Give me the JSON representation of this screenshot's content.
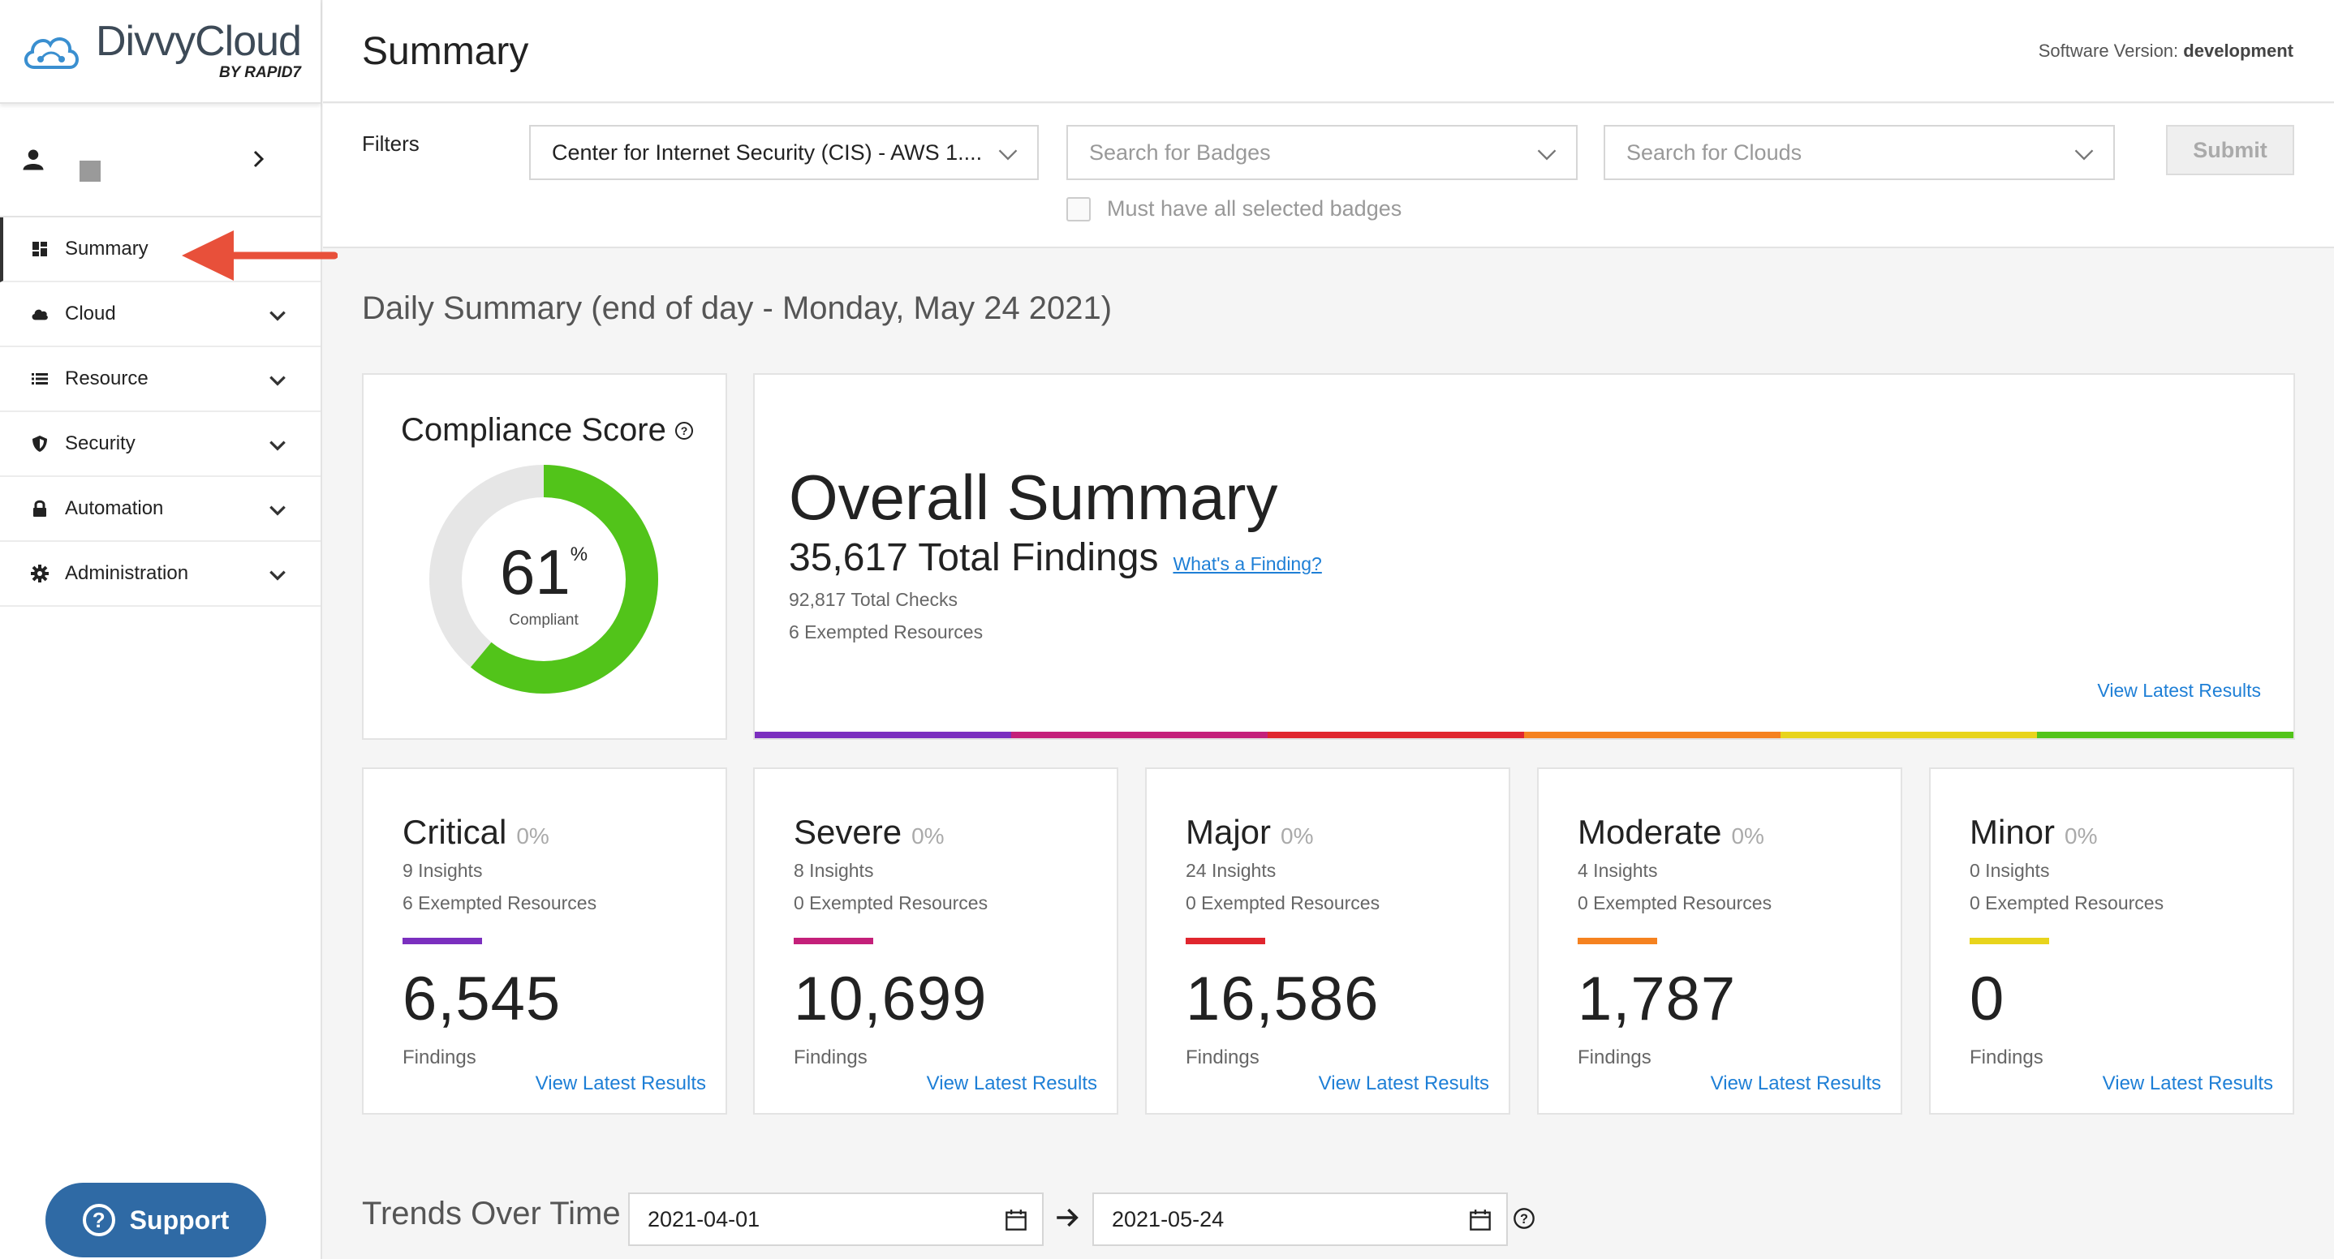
{
  "app": {
    "logo_name": "DivvyCloud",
    "logo_by": "BY",
    "logo_rapid": "RAPID7"
  },
  "header": {
    "title": "Summary",
    "version_label": "Software Version:",
    "version_value": "development"
  },
  "sidebar": {
    "items": [
      {
        "label": "Summary",
        "icon": "dashboard-icon",
        "active": true
      },
      {
        "label": "Cloud",
        "icon": "cloud-icon"
      },
      {
        "label": "Resource",
        "icon": "list-icon"
      },
      {
        "label": "Security",
        "icon": "shield-icon"
      },
      {
        "label": "Automation",
        "icon": "lock-icon"
      },
      {
        "label": "Administration",
        "icon": "gear-icon"
      }
    ],
    "support_label": "Support"
  },
  "filters": {
    "label": "Filters",
    "pack_value": "Center for Internet Security (CIS) - AWS 1....",
    "badges_placeholder": "Search for Badges",
    "clouds_placeholder": "Search for Clouds",
    "submit_label": "Submit",
    "must_have_label": "Must have all selected badges"
  },
  "daily": {
    "title": "Daily Summary (end of day - Monday, May 24 2021)"
  },
  "compliance": {
    "title": "Compliance Score",
    "score": "61",
    "score_pct": 61,
    "percent_sign": "%",
    "label": "Compliant",
    "fill_color": "#52c41a",
    "track_color": "#e6e6e6"
  },
  "overall": {
    "title": "Overall Summary",
    "total_findings": "35,617 Total Findings",
    "whats_finding": "What's a Finding?",
    "total_checks": "92,817 Total Checks",
    "exempted": "6 Exempted Resources",
    "view_latest": "View Latest Results",
    "rainbow": [
      "#7b2fbf",
      "#c4207a",
      "#e0262e",
      "#f58220",
      "#e8d41c",
      "#52c41a"
    ]
  },
  "severities": [
    {
      "name": "Critical",
      "pct": "0%",
      "insights": "9 Insights",
      "exempt": "6 Exempted Resources",
      "color": "#7b2fbf",
      "count": "6,545",
      "findings_label": "Findings",
      "view": "View Latest Results"
    },
    {
      "name": "Severe",
      "pct": "0%",
      "insights": "8 Insights",
      "exempt": "0 Exempted Resources",
      "color": "#c4207a",
      "count": "10,699",
      "findings_label": "Findings",
      "view": "View Latest Results"
    },
    {
      "name": "Major",
      "pct": "0%",
      "insights": "24 Insights",
      "exempt": "0 Exempted Resources",
      "color": "#e0262e",
      "count": "16,586",
      "findings_label": "Findings",
      "view": "View Latest Results"
    },
    {
      "name": "Moderate",
      "pct": "0%",
      "insights": "4 Insights",
      "exempt": "0 Exempted Resources",
      "color": "#f58220",
      "count": "1,787",
      "findings_label": "Findings",
      "view": "View Latest Results"
    },
    {
      "name": "Minor",
      "pct": "0%",
      "insights": "0 Insights",
      "exempt": "0 Exempted Resources",
      "color": "#e8d41c",
      "count": "0",
      "findings_label": "Findings",
      "view": "View Latest Results"
    }
  ],
  "trends": {
    "title": "Trends Over Time",
    "start_date": "2021-04-01",
    "end_date": "2021-05-24"
  }
}
